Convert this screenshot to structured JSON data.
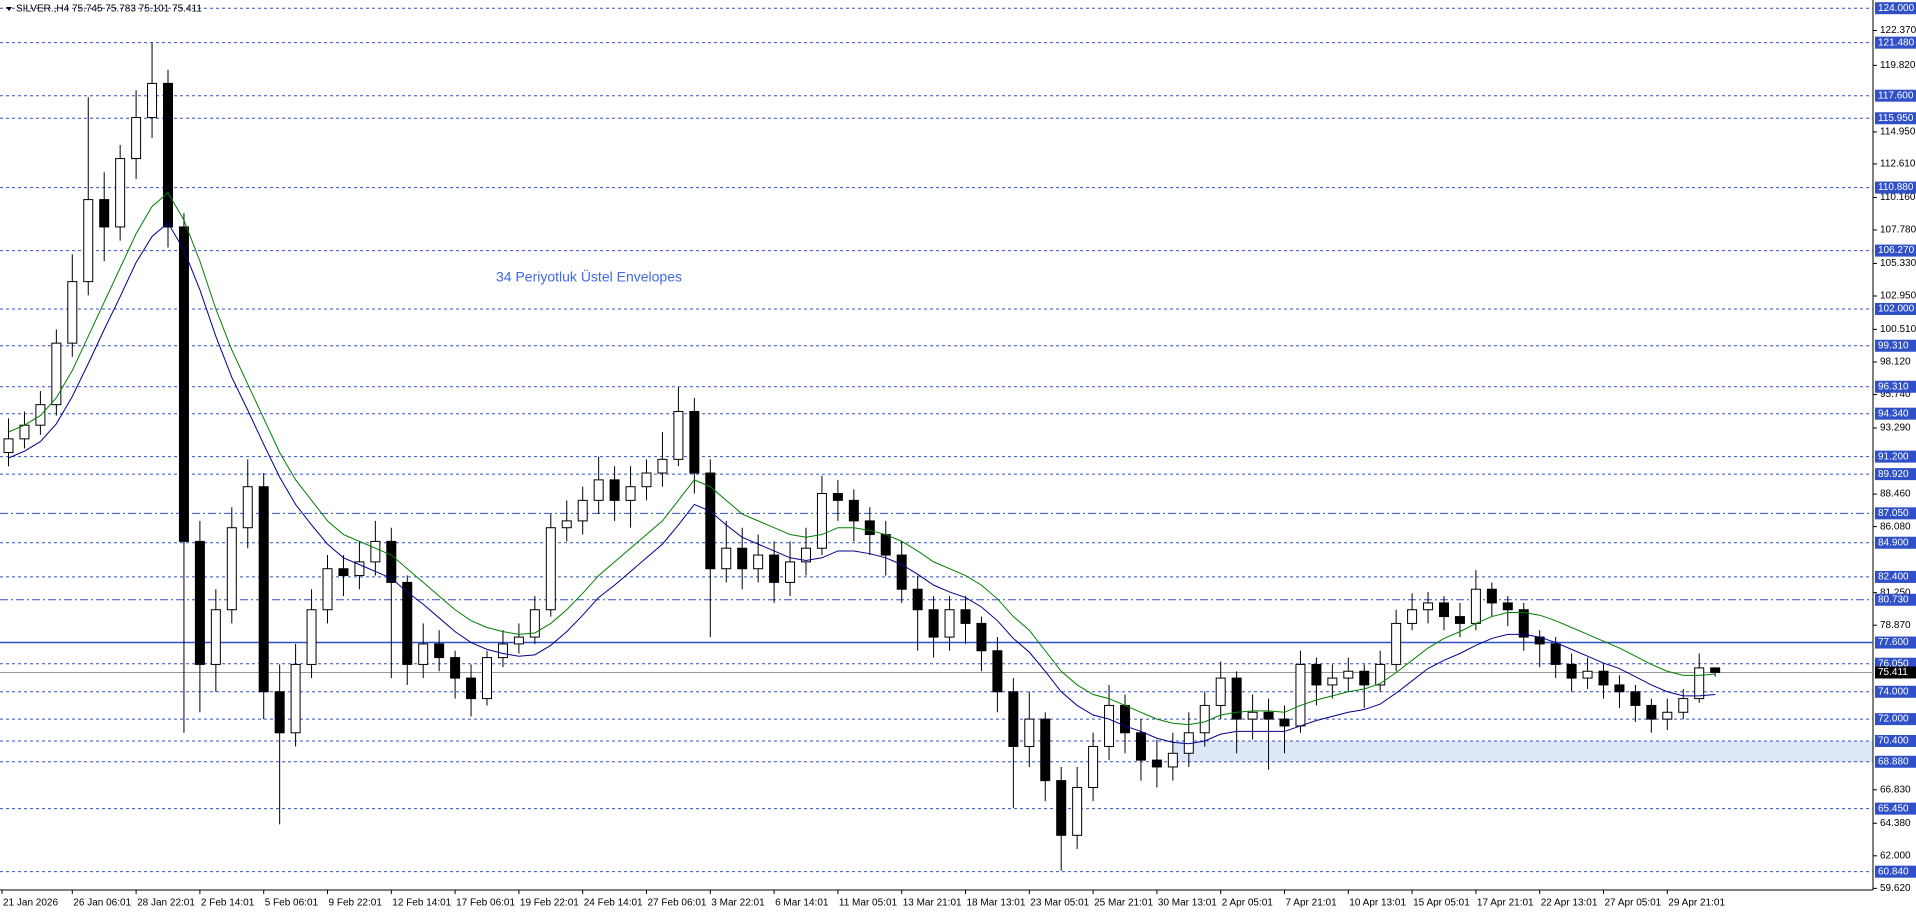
{
  "chart_data": {
    "type": "candlestick",
    "title": "SILVER.,H4  75.745 75.783 75.101 75.411",
    "annotation": "34 Periyotluk Üstel Envelopes",
    "time_labels": [
      "21 Jan 2026",
      "26 Jan 06:01",
      "28 Jan 22:01",
      "2 Feb 14:01",
      "5 Feb 06:01",
      "9 Feb 22:01",
      "12 Feb 14:01",
      "17 Feb 06:01",
      "19 Feb 22:01",
      "24 Feb 14:01",
      "27 Feb 06:01",
      "3 Mar 22:01",
      "6 Mar 14:01",
      "11 Mar 05:01",
      "13 Mar 21:01",
      "18 Mar 13:01",
      "23 Mar 05:01",
      "25 Mar 21:01",
      "30 Mar 13:01",
      "2 Apr 05:01",
      "7 Apr 21:01",
      "10 Apr 13:01",
      "15 Apr 05:01",
      "17 Apr 21:01",
      "22 Apr 13:01",
      "27 Apr 05:01",
      "29 Apr 21:01"
    ],
    "candles": {
      "open": [
        91.5,
        92.5,
        93.5,
        95.0,
        99.5,
        104.0,
        110.0,
        108.0,
        113.0,
        116.0,
        118.5,
        108.0,
        85.0,
        76.0,
        80.0,
        86.0,
        89.0,
        74.0,
        71.0,
        76.0,
        80.0,
        83.0,
        82.5,
        83.5,
        85.0,
        82.0,
        76.0,
        77.5,
        76.5,
        75.0,
        73.5,
        76.5,
        77.5,
        78.0,
        80.0,
        86.0,
        86.5,
        88.0,
        89.5,
        88.0,
        89.0,
        90.0,
        91.0,
        94.5,
        90.0,
        83.0,
        84.5,
        83.0,
        84.0,
        82.0,
        83.5,
        84.5,
        88.5,
        88.0,
        86.5,
        85.5,
        84.0,
        81.5,
        80.0,
        78.0,
        80.0,
        79.0,
        77.0,
        74.0,
        70.0,
        72.0,
        67.5,
        63.5,
        67.0,
        70.0,
        73.0,
        71.0,
        69.0,
        68.5,
        69.5,
        71.0,
        73.0,
        75.0,
        72.0,
        72.5,
        72.0,
        71.5,
        76.0,
        74.5,
        75.0,
        75.5,
        74.5,
        76.0,
        79.0,
        80.0,
        80.5,
        79.5,
        79.0,
        81.5,
        80.5,
        80.0,
        78.0,
        77.5,
        76.0,
        75.0,
        75.5,
        74.5,
        74.0,
        73.0,
        72.0,
        72.5,
        73.5,
        75.745
      ],
      "high": [
        94.0,
        94.5,
        96.0,
        100.5,
        106.0,
        117.5,
        112.0,
        114.0,
        118.0,
        121.5,
        119.5,
        109.0,
        86.5,
        81.5,
        87.5,
        91.0,
        90.0,
        76.0,
        77.5,
        81.5,
        84.0,
        84.0,
        85.0,
        86.5,
        86.0,
        82.5,
        79.0,
        78.5,
        77.0,
        76.0,
        77.0,
        78.5,
        79.0,
        81.0,
        87.0,
        88.0,
        89.0,
        91.2,
        90.5,
        90.5,
        91.0,
        93.0,
        96.3,
        95.5,
        91.0,
        86.5,
        86.0,
        85.5,
        85.0,
        85.0,
        86.0,
        89.8,
        89.5,
        88.8,
        87.5,
        86.5,
        85.0,
        82.5,
        81.0,
        81.0,
        81.0,
        79.5,
        78.0,
        75.0,
        74.0,
        72.5,
        68.5,
        68.5,
        71.0,
        74.5,
        73.8,
        72.0,
        70.5,
        71.0,
        72.5,
        74.0,
        76.2,
        75.5,
        73.8,
        73.5,
        73.0,
        77.0,
        76.5,
        76.0,
        76.5,
        76.0,
        77.0,
        80.0,
        81.2,
        81.3,
        81.0,
        80.5,
        82.9,
        82.0,
        81.0,
        80.5,
        78.5,
        78.0,
        76.8,
        76.5,
        76.0,
        75.2,
        74.5,
        73.5,
        73.5,
        74.2,
        76.8,
        75.783
      ],
      "low": [
        90.5,
        91.8,
        92.8,
        94.2,
        98.5,
        103.0,
        105.5,
        107.0,
        111.5,
        114.5,
        106.5,
        71.0,
        72.5,
        74.0,
        79.0,
        84.5,
        72.0,
        64.3,
        70.0,
        75.0,
        79.0,
        81.0,
        81.5,
        82.5,
        75.0,
        74.5,
        75.0,
        75.5,
        73.5,
        72.2,
        73.0,
        75.8,
        76.8,
        77.5,
        79.5,
        85.0,
        85.5,
        87.0,
        86.5,
        86.0,
        88.0,
        89.0,
        90.5,
        88.5,
        78.0,
        82.0,
        81.5,
        82.0,
        80.5,
        81.0,
        82.5,
        84.0,
        86.5,
        85.0,
        84.0,
        82.5,
        80.5,
        77.0,
        76.5,
        77.0,
        77.5,
        75.5,
        72.5,
        65.5,
        68.5,
        66.0,
        60.9,
        62.5,
        66.0,
        69.0,
        69.5,
        67.5,
        67.0,
        67.5,
        68.5,
        70.0,
        72.0,
        69.5,
        70.5,
        68.3,
        69.5,
        71.0,
        73.0,
        73.5,
        74.0,
        72.8,
        74.0,
        75.5,
        78.5,
        79.0,
        78.5,
        78.0,
        78.5,
        79.5,
        78.8,
        77.0,
        75.8,
        75.0,
        74.0,
        74.2,
        73.5,
        72.8,
        71.8,
        71.0,
        71.2,
        72.0,
        73.2,
        75.101
      ],
      "close": [
        92.5,
        93.5,
        95.0,
        99.5,
        104.0,
        110.0,
        108.0,
        113.0,
        116.0,
        118.5,
        108.0,
        85.0,
        76.0,
        80.0,
        86.0,
        89.0,
        74.0,
        71.0,
        76.0,
        80.0,
        83.0,
        82.5,
        83.5,
        85.0,
        82.0,
        76.0,
        77.5,
        76.5,
        75.0,
        73.5,
        76.5,
        77.5,
        78.0,
        80.0,
        86.0,
        86.5,
        88.0,
        89.5,
        88.0,
        89.0,
        90.0,
        91.0,
        94.5,
        90.0,
        83.0,
        84.5,
        83.0,
        84.0,
        82.0,
        83.5,
        84.5,
        88.5,
        88.0,
        86.5,
        85.5,
        84.0,
        81.5,
        80.0,
        78.0,
        80.0,
        79.0,
        77.0,
        74.0,
        70.0,
        72.0,
        67.5,
        63.5,
        67.0,
        70.0,
        73.0,
        71.0,
        69.0,
        68.5,
        69.5,
        71.0,
        73.0,
        75.0,
        72.0,
        72.5,
        72.0,
        71.5,
        76.0,
        74.5,
        75.0,
        75.5,
        74.5,
        76.0,
        79.0,
        80.0,
        80.5,
        79.5,
        79.0,
        81.5,
        80.5,
        80.0,
        78.0,
        77.5,
        76.0,
        75.0,
        75.5,
        74.5,
        74.0,
        73.0,
        72.0,
        72.5,
        73.5,
        75.745,
        75.411
      ]
    },
    "up_color": "#ffffff",
    "down_color": "#000000",
    "envelopes": [
      {
        "color": "#008000",
        "values": [
          93.0,
          93.5,
          94.2,
          95.5,
          97.5,
          100.0,
          102.5,
          105.0,
          107.5,
          109.5,
          110.5,
          108.5,
          105.5,
          102.0,
          99.0,
          96.5,
          94.0,
          91.5,
          89.5,
          88.0,
          86.5,
          85.5,
          85.0,
          84.5,
          84.0,
          83.0,
          82.0,
          81.0,
          80.0,
          79.2,
          78.7,
          78.4,
          78.2,
          78.3,
          79.0,
          80.0,
          81.2,
          82.5,
          83.5,
          84.5,
          85.5,
          86.5,
          88.0,
          89.5,
          89.0,
          88.0,
          87.0,
          86.5,
          86.0,
          85.5,
          85.3,
          85.5,
          86.0,
          86.0,
          85.8,
          85.5,
          85.0,
          84.3,
          83.5,
          83.0,
          82.5,
          81.8,
          80.8,
          79.5,
          78.5,
          77.0,
          75.5,
          74.5,
          73.8,
          73.5,
          73.0,
          72.5,
          72.0,
          71.7,
          71.6,
          71.8,
          72.3,
          72.5,
          72.6,
          72.6,
          72.5,
          73.0,
          73.4,
          73.7,
          74.0,
          74.2,
          74.6,
          75.4,
          76.3,
          77.2,
          77.9,
          78.4,
          79.0,
          79.5,
          79.8,
          79.8,
          79.6,
          79.2,
          78.7,
          78.2,
          77.7,
          77.2,
          76.6,
          76.0,
          75.5,
          75.2,
          75.2,
          75.3
        ]
      },
      {
        "color": "#00008b",
        "values": [
          91.1,
          91.6,
          92.3,
          93.6,
          95.6,
          98.0,
          100.5,
          102.9,
          105.4,
          107.3,
          108.3,
          106.3,
          103.4,
          100.0,
          97.0,
          94.6,
          92.1,
          89.7,
          87.7,
          86.2,
          84.8,
          83.8,
          83.3,
          82.8,
          82.3,
          81.3,
          80.4,
          79.4,
          78.4,
          77.6,
          77.1,
          76.8,
          76.6,
          76.7,
          77.4,
          78.4,
          79.6,
          80.9,
          81.8,
          82.8,
          83.8,
          84.8,
          86.2,
          87.7,
          87.2,
          86.2,
          85.3,
          84.8,
          84.3,
          83.8,
          83.6,
          83.8,
          84.3,
          84.3,
          84.1,
          83.8,
          83.3,
          82.6,
          81.8,
          81.3,
          80.9,
          80.2,
          79.2,
          77.9,
          76.9,
          75.5,
          74.0,
          73.0,
          72.3,
          72.0,
          71.5,
          71.1,
          70.6,
          70.3,
          70.2,
          70.4,
          70.9,
          71.1,
          71.1,
          71.1,
          71.1,
          71.5,
          71.9,
          72.2,
          72.5,
          72.7,
          73.1,
          73.9,
          74.8,
          75.7,
          76.3,
          76.8,
          77.4,
          77.9,
          78.2,
          78.2,
          78.0,
          77.6,
          77.1,
          76.6,
          76.1,
          75.7,
          75.1,
          74.5,
          74.0,
          73.7,
          73.7,
          73.8
        ]
      }
    ],
    "ylim": [
      59.5,
      124.6
    ],
    "yticks": [
      {
        "value": 59.62,
        "label": "59.620"
      },
      {
        "value": 62.0,
        "label": "62.000"
      },
      {
        "value": 64.38,
        "label": "64.380"
      },
      {
        "value": 66.83,
        "label": "66.830"
      },
      {
        "value": 78.87,
        "label": "78.870"
      },
      {
        "value": 81.25,
        "label": "81.250"
      },
      {
        "value": 86.08,
        "label": "86.080"
      },
      {
        "value": 88.46,
        "label": "88.460"
      },
      {
        "value": 93.29,
        "label": "93.290"
      },
      {
        "value": 95.74,
        "label": "95.740"
      },
      {
        "value": 98.12,
        "label": "98.120"
      },
      {
        "value": 100.51,
        "label": "100.510"
      },
      {
        "value": 102.95,
        "label": "102.950"
      },
      {
        "value": 105.33,
        "label": "105.330"
      },
      {
        "value": 107.78,
        "label": "107.780"
      },
      {
        "value": 110.16,
        "label": "110.160"
      },
      {
        "value": 112.61,
        "label": "112.610"
      },
      {
        "value": 114.95,
        "label": "114.950"
      },
      {
        "value": 119.82,
        "label": "119.820"
      },
      {
        "value": 122.37,
        "label": "122.370"
      }
    ],
    "level_color": "#3050c8",
    "levels": [
      {
        "value": 124.0,
        "label": "124.000"
      },
      {
        "value": 121.48,
        "label": "121.480"
      },
      {
        "value": 117.6,
        "label": "117.600"
      },
      {
        "value": 115.95,
        "label": "115.950"
      },
      {
        "value": 110.88,
        "label": "110.880"
      },
      {
        "value": 106.27,
        "label": "106.270"
      },
      {
        "value": 102.0,
        "label": "102.000"
      },
      {
        "value": 99.31,
        "label": "99.310"
      },
      {
        "value": 96.31,
        "label": "96.310"
      },
      {
        "value": 94.34,
        "label": "94.340"
      },
      {
        "value": 91.2,
        "label": "91.200"
      },
      {
        "value": 89.92,
        "label": "89.920"
      },
      {
        "value": 87.05,
        "label": "87.050",
        "style": "dashdot"
      },
      {
        "value": 84.9,
        "label": "84.900"
      },
      {
        "value": 82.4,
        "label": "82.400"
      },
      {
        "value": 80.73,
        "label": "80.730",
        "style": "dashdot"
      },
      {
        "value": 77.6,
        "label": "77.600",
        "style": "solid"
      },
      {
        "value": 76.05,
        "label": "76.050"
      },
      {
        "value": 74.0,
        "label": "74.000"
      },
      {
        "value": 72.0,
        "label": "72.000"
      },
      {
        "value": 70.4,
        "label": "70.400"
      },
      {
        "value": 68.88,
        "label": "68.880"
      },
      {
        "value": 65.45,
        "label": "65.450"
      },
      {
        "value": 60.84,
        "label": "60.840"
      }
    ],
    "zone": {
      "from": 68.88,
      "to": 70.4,
      "color": "#dde7f7"
    },
    "last": {
      "value": 75.411,
      "label": "75.411"
    }
  }
}
